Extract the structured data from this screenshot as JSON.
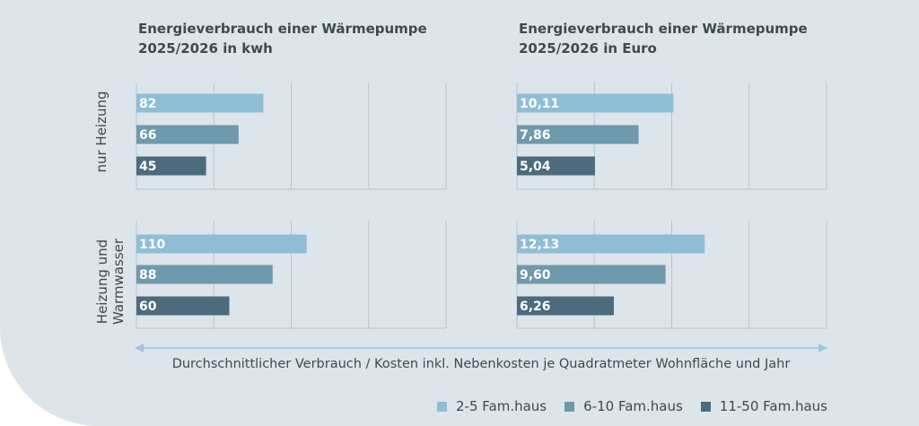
{
  "chart_data": [
    {
      "type": "bar",
      "title": "Energieverbrauch einer Wärmepumpe 2025/2026 in kwh",
      "title_lines": [
        "Energieverbrauch einer Wärmepumpe",
        "2025/2026 in kwh"
      ],
      "categories": [
        "nur Heizung",
        "Heizung und Warmwasser"
      ],
      "series": [
        {
          "name": "2-5 Fam.haus",
          "values": [
            82,
            110
          ],
          "labels": [
            "82",
            "110"
          ]
        },
        {
          "name": "6-10 Fam.haus",
          "values": [
            66,
            88
          ],
          "labels": [
            "66",
            "88"
          ]
        },
        {
          "name": "11-50 Fam.haus",
          "values": [
            45,
            60
          ],
          "labels": [
            "45",
            "60"
          ]
        }
      ],
      "xlim": [
        0,
        200
      ],
      "grid": true
    },
    {
      "type": "bar",
      "title": "Energieverbrauch einer Wärmepumpe 2025/2026 in Euro",
      "title_lines": [
        "Energieverbrauch einer Wärmepumpe",
        "2025/2026 in Euro"
      ],
      "categories": [
        "nur Heizung",
        "Heizung und Warmwasser"
      ],
      "series": [
        {
          "name": "2-5 Fam.haus",
          "values": [
            10.11,
            12.13
          ],
          "labels": [
            "10,11",
            "12,13"
          ]
        },
        {
          "name": "6-10 Fam.haus",
          "values": [
            7.86,
            9.6
          ],
          "labels": [
            "7,86",
            "9,60"
          ]
        },
        {
          "name": "11-50 Fam.haus",
          "values": [
            5.04,
            6.26
          ],
          "labels": [
            "5,04",
            "6,26"
          ]
        }
      ],
      "xlim": [
        0,
        20
      ],
      "grid": true
    }
  ],
  "row_labels": {
    "top": [
      "nur Heizung"
    ],
    "bottom": [
      "Heizung und",
      "Warmwasser"
    ]
  },
  "footer": "Durchschnittlicher Verbrauch / Kosten inkl. Nebenkosten je Quadratmeter Wohnfläche und Jahr",
  "legend": [
    {
      "label": "2-5 Fam.haus",
      "color": "#90bdd6"
    },
    {
      "label": "6-10 Fam.haus",
      "color": "#6f99ac"
    },
    {
      "label": "11-50 Fam.haus",
      "color": "#4c6b7c"
    }
  ],
  "colors": {
    "background": "#dde5ea",
    "text": "#3c4a52",
    "grid": "#b6c4cd",
    "arrow": "#9cc6dc"
  }
}
